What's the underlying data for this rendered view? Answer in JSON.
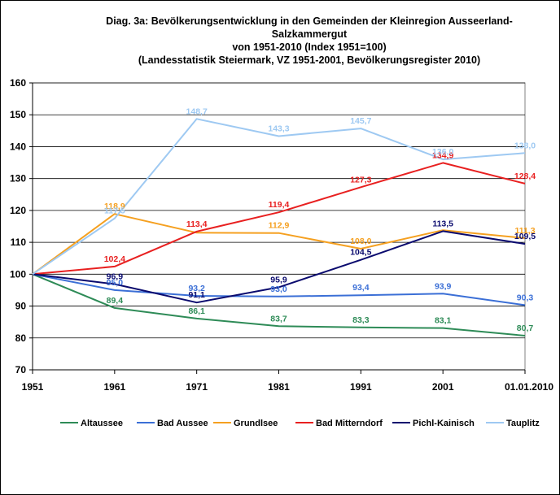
{
  "chart_data": {
    "type": "line",
    "title_lines": [
      "Diag. 3a: Bevölkerungsentwicklung  in den Gemeinden der Kleinregion Ausseerland-",
      "Salzkammergut",
      "von 1951-2010  (Index 1951=100)",
      "(Landesstatistik  Steiermark, VZ 1951-2001,  Bevölkerungsregister  2010)"
    ],
    "categories": [
      "1951",
      "1961",
      "1971",
      "1981",
      "1991",
      "2001",
      "01.01.2010"
    ],
    "ylim": [
      70,
      160
    ],
    "yticks": [
      70,
      80,
      90,
      100,
      110,
      120,
      130,
      140,
      150,
      160
    ],
    "grid": "horizontal",
    "legend_position": "bottom",
    "series": [
      {
        "name": "Altaussee",
        "color": "#2e8b57",
        "values": [
          100,
          89.4,
          86.1,
          83.7,
          83.3,
          83.1,
          80.7
        ],
        "labels": [
          "",
          "89,4",
          "86,1",
          "83,7",
          "83,3",
          "83,1",
          "80,7"
        ]
      },
      {
        "name": "Bad Aussee",
        "color": "#3b6fd6",
        "values": [
          100,
          95.0,
          93.2,
          93.0,
          93.4,
          93.9,
          90.3
        ],
        "labels": [
          "",
          "95,0",
          "93,2",
          "93,0",
          "93,4",
          "93,9",
          "90,3"
        ]
      },
      {
        "name": "Grundlsee",
        "color": "#f5a020",
        "values": [
          100,
          118.9,
          113.0,
          112.9,
          108.0,
          113.8,
          111.3
        ],
        "labels": [
          "",
          "118,9",
          "",
          "112,9",
          "108,0",
          "",
          "111,3"
        ]
      },
      {
        "name": "Bad Mitterndorf",
        "color": "#e82020",
        "values": [
          100,
          102.4,
          113.4,
          119.4,
          127.3,
          134.9,
          128.4
        ],
        "labels": [
          "",
          "102,4",
          "113,4",
          "119,4",
          "127,3",
          "134,9",
          "128,4"
        ]
      },
      {
        "name": "Pichl-Kainisch",
        "color": "#0a0a6e",
        "values": [
          100,
          96.9,
          91.1,
          95.9,
          104.5,
          113.5,
          109.5
        ],
        "labels": [
          "",
          "96,9",
          "91,1",
          "95,9",
          "104,5",
          "113,5",
          "109,5"
        ]
      },
      {
        "name": "Tauplitz",
        "color": "#9ec9f2",
        "values": [
          100,
          117.5,
          148.7,
          143.3,
          145.7,
          136.0,
          138.0
        ],
        "labels": [
          "",
          "117,5",
          "148,7",
          "143,3",
          "145,7",
          "136,0",
          "138,0"
        ]
      }
    ]
  }
}
